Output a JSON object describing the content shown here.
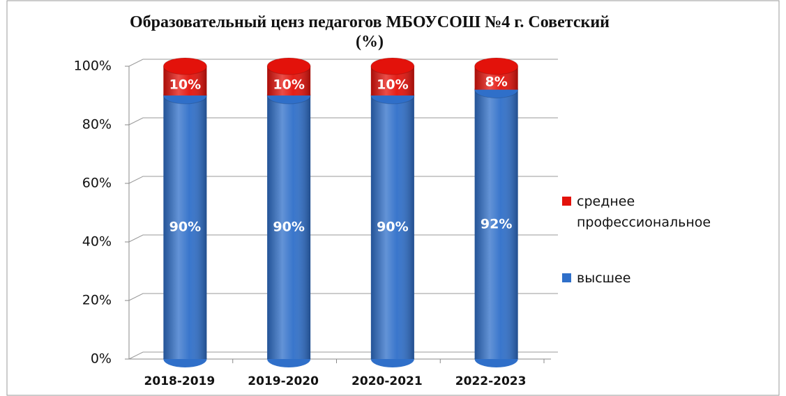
{
  "chart_data": {
    "type": "stacked_bar",
    "title": "Образовательный ценз педагогов МБОУСОШ №4 г. Советский (%)",
    "categories": [
      "2018-2019",
      "2019-2020",
      "2020-2021",
      "2022-2023"
    ],
    "series": [
      {
        "name": "высшее",
        "color": "#2f6fc9",
        "values": [
          90,
          90,
          90,
          92
        ],
        "value_labels": [
          "90%",
          "90%",
          "90%",
          "92%"
        ]
      },
      {
        "name": "среднее профессиональное",
        "color": "#e3120b",
        "values": [
          10,
          10,
          10,
          8
        ],
        "value_labels": [
          "10%",
          "10%",
          "10%",
          "8%"
        ]
      }
    ],
    "ylim": [
      0,
      100
    ],
    "yticks": [
      {
        "value": 0,
        "label": "0%"
      },
      {
        "value": 20,
        "label": "20%"
      },
      {
        "value": 40,
        "label": "40%"
      },
      {
        "value": 60,
        "label": "60%"
      },
      {
        "value": 80,
        "label": "80%"
      },
      {
        "value": 100,
        "label": "100%"
      }
    ],
    "grid": true
  }
}
